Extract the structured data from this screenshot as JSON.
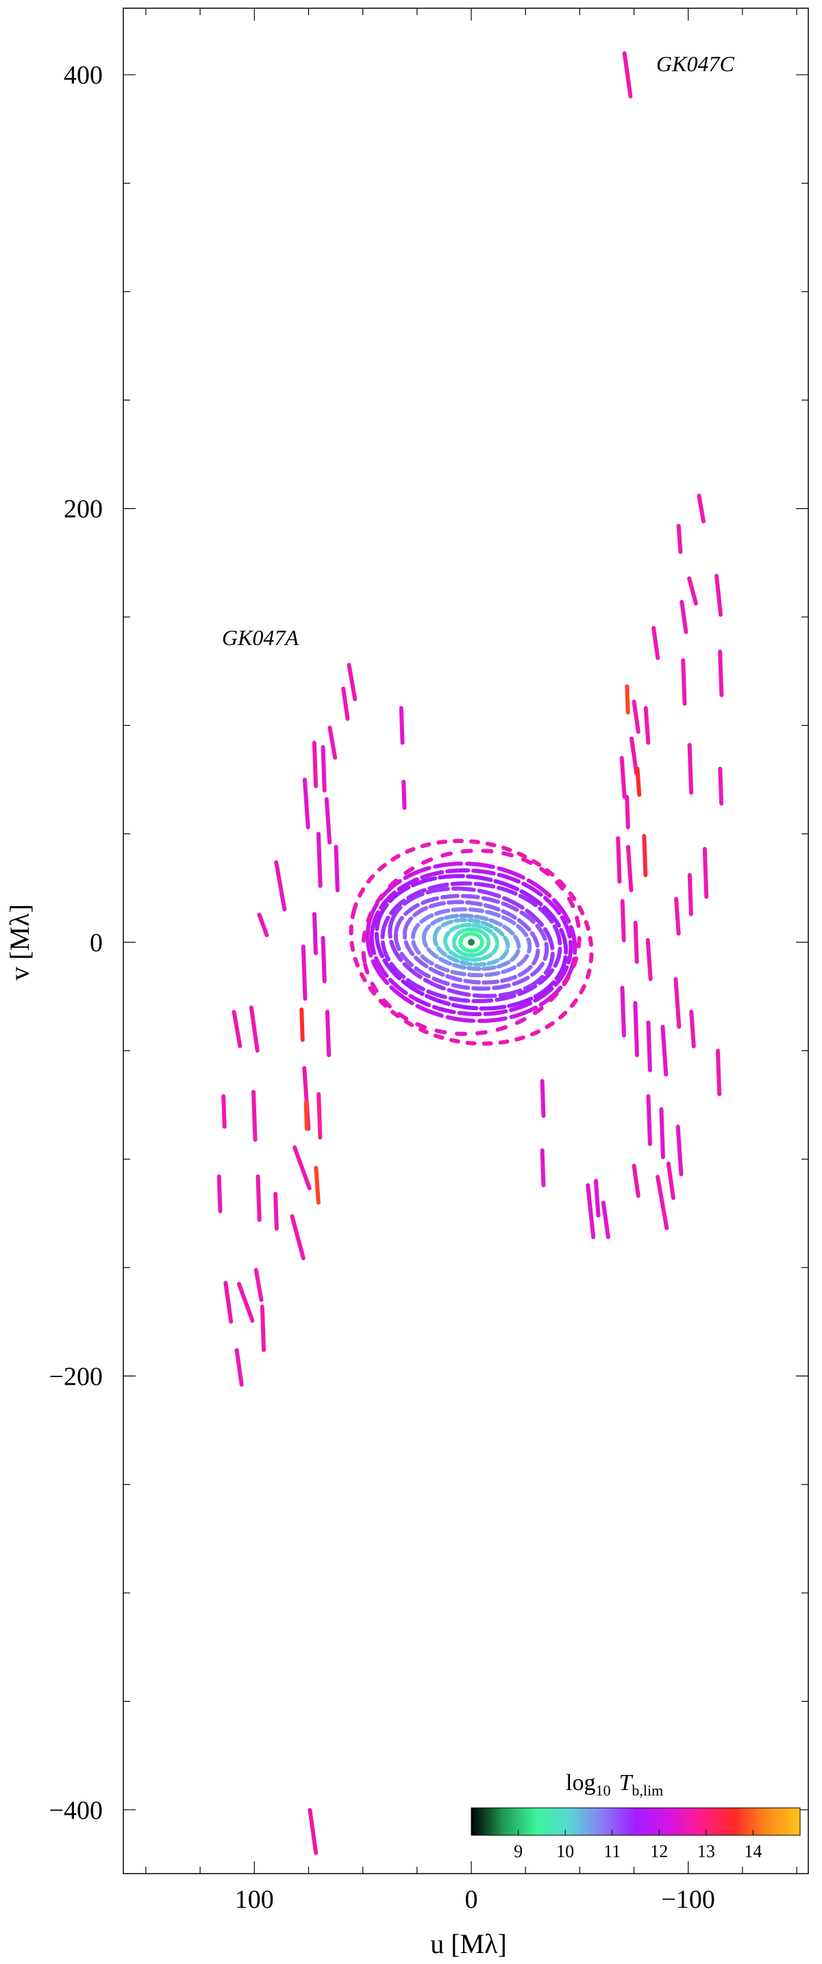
{
  "chart_data": {
    "type": "scatter",
    "xlabel": "u [Mλ]",
    "ylabel": "v [Mλ]",
    "xlim": [
      155,
      -155
    ],
    "ylim": [
      -430,
      430
    ],
    "x_ticks": [
      100,
      0,
      -100
    ],
    "x_tick_labels": [
      "100",
      "0",
      "−100"
    ],
    "y_ticks": [
      400,
      200,
      0,
      -200,
      -400
    ],
    "y_tick_labels": [
      "400",
      "200",
      "0",
      "−200",
      "−400"
    ],
    "grid": false,
    "annotations": [
      {
        "text": "GK047A",
        "u": 93,
        "v": 140
      },
      {
        "text": "GK047C",
        "u": -86,
        "v": 400
      }
    ],
    "colorbar": {
      "title": "log₁₀ Tᵦ,lim",
      "title_main": "log",
      "title_sub": "10",
      "title_var": "T",
      "title_var_sub": "b,lim",
      "range": [
        8,
        15
      ],
      "ticks": [
        9,
        10,
        11,
        12,
        13,
        14
      ],
      "tick_labels": [
        "9",
        "10",
        "11",
        "12",
        "13",
        "14"
      ],
      "colormap": [
        "#000000",
        "#1f9e56",
        "#3df59a",
        "#58d6d6",
        "#8a7cf5",
        "#a21cff",
        "#d413e6",
        "#ff1c8a",
        "#ff2a2a",
        "#ff8a1a",
        "#ffc21a"
      ]
    },
    "ellipses": [
      {
        "a": 48,
        "b": 36,
        "tilt": 8,
        "t": 12.0,
        "dash": 38,
        "gap": 9
      },
      {
        "a": 46,
        "b": 33,
        "tilt": 6,
        "t": 11.8,
        "dash": 30,
        "gap": 8
      },
      {
        "a": 44,
        "b": 30,
        "tilt": 10,
        "t": 11.5,
        "dash": 34,
        "gap": 7
      },
      {
        "a": 41,
        "b": 27,
        "tilt": 5,
        "t": 11.4,
        "dash": 26,
        "gap": 8
      },
      {
        "a": 38,
        "b": 24,
        "tilt": 12,
        "t": 11.3,
        "dash": 30,
        "gap": 8
      },
      {
        "a": 35,
        "b": 21,
        "tilt": 8,
        "t": 11.1,
        "dash": 22,
        "gap": 8
      },
      {
        "a": 31,
        "b": 18,
        "tilt": 10,
        "t": 11.0,
        "dash": 20,
        "gap": 7
      },
      {
        "a": 27,
        "b": 15,
        "tilt": 6,
        "t": 10.8,
        "dash": 18,
        "gap": 7
      },
      {
        "a": 22,
        "b": 12,
        "tilt": 8,
        "t": 10.6,
        "dash": 16,
        "gap": 6
      },
      {
        "a": 17,
        "b": 10,
        "tilt": 10,
        "t": 10.3,
        "dash": 14,
        "gap": 6
      },
      {
        "a": 12,
        "b": 8,
        "tilt": 5,
        "t": 10.0,
        "dash": 12,
        "gap": 5
      },
      {
        "a": 8,
        "b": 6,
        "tilt": 0,
        "t": 9.8,
        "dash": 10,
        "gap": 4
      },
      {
        "a": 5,
        "b": 4,
        "tilt": 0,
        "t": 9.4,
        "dash": 8,
        "gap": 3
      },
      {
        "a": 56,
        "b": 46,
        "tilt": 15,
        "t": 12.6,
        "dash": 10,
        "gap": 14
      },
      {
        "a": 50,
        "b": 42,
        "tilt": -10,
        "t": 12.5,
        "dash": 12,
        "gap": 18
      }
    ],
    "tracks": [
      {
        "u": 55,
        "v": 120,
        "len": 16,
        "ang": 80,
        "t": 12.6
      },
      {
        "u": 58,
        "v": 110,
        "len": 14,
        "ang": 82,
        "t": 12.6
      },
      {
        "u": 64,
        "v": 92,
        "len": 14,
        "ang": 80,
        "t": 12.6
      },
      {
        "u": 72,
        "v": 82,
        "len": 20,
        "ang": 88,
        "t": 12.6
      },
      {
        "u": 68,
        "v": 80,
        "len": 20,
        "ang": 88,
        "t": 12.4
      },
      {
        "u": 76,
        "v": 64,
        "len": 22,
        "ang": 86,
        "t": 12.4
      },
      {
        "u": 66,
        "v": 56,
        "len": 20,
        "ang": 86,
        "t": 12.4
      },
      {
        "u": 70,
        "v": 38,
        "len": 24,
        "ang": 88,
        "t": 12.4
      },
      {
        "u": 62,
        "v": 34,
        "len": 20,
        "ang": 88,
        "t": 12.4
      },
      {
        "u": 88,
        "v": 26,
        "len": 22,
        "ang": 80,
        "t": 12.5
      },
      {
        "u": 96,
        "v": 8,
        "len": 10,
        "ang": 70,
        "t": 12.5
      },
      {
        "u": 72,
        "v": 4,
        "len": 18,
        "ang": 88,
        "t": 12.4
      },
      {
        "u": 68,
        "v": -8,
        "len": 20,
        "ang": 88,
        "t": 12.4
      },
      {
        "u": 77,
        "v": -14,
        "len": 24,
        "ang": 88,
        "t": 12.4
      },
      {
        "u": 78,
        "v": -38,
        "len": 14,
        "ang": 88,
        "t": 13.6
      },
      {
        "u": 66,
        "v": -42,
        "len": 20,
        "ang": 88,
        "t": 12.5
      },
      {
        "u": 100,
        "v": -40,
        "len": 20,
        "ang": 82,
        "t": 12.6
      },
      {
        "u": 108,
        "v": -40,
        "len": 16,
        "ang": 80,
        "t": 12.6
      },
      {
        "u": 76,
        "v": -72,
        "len": 28,
        "ang": 86,
        "t": 12.6
      },
      {
        "u": 70,
        "v": -80,
        "len": 20,
        "ang": 88,
        "t": 12.8
      },
      {
        "u": 76,
        "v": -80,
        "len": 12,
        "ang": 88,
        "t": 13.8
      },
      {
        "u": 100,
        "v": -80,
        "len": 22,
        "ang": 88,
        "t": 12.6
      },
      {
        "u": 114,
        "v": -78,
        "len": 14,
        "ang": 88,
        "t": 12.6
      },
      {
        "u": 78,
        "v": -104,
        "len": 20,
        "ang": 70,
        "t": 12.6
      },
      {
        "u": 71,
        "v": -112,
        "len": 16,
        "ang": 86,
        "t": 13.8
      },
      {
        "u": 98,
        "v": -118,
        "len": 20,
        "ang": 88,
        "t": 12.6
      },
      {
        "u": 90,
        "v": -124,
        "len": 16,
        "ang": 88,
        "t": 12.6
      },
      {
        "u": 116,
        "v": -116,
        "len": 16,
        "ang": 88,
        "t": 12.6
      },
      {
        "u": 80,
        "v": -136,
        "len": 20,
        "ang": 75,
        "t": 12.6
      },
      {
        "u": 98,
        "v": -158,
        "len": 14,
        "ang": 80,
        "t": 12.6
      },
      {
        "u": 112,
        "v": -166,
        "len": 18,
        "ang": 82,
        "t": 12.6
      },
      {
        "u": 104,
        "v": -166,
        "len": 18,
        "ang": 70,
        "t": 12.6
      },
      {
        "u": 96,
        "v": -178,
        "len": 20,
        "ang": 88,
        "t": 12.6
      },
      {
        "u": 107,
        "v": -196,
        "len": 16,
        "ang": 82,
        "t": 12.6
      },
      {
        "u": 73,
        "v": -410,
        "len": 20,
        "ang": 82,
        "t": 12.6
      },
      {
        "u": 32,
        "v": 100,
        "len": 16,
        "ang": 88,
        "t": 12.4
      },
      {
        "u": 31,
        "v": 68,
        "len": 12,
        "ang": 88,
        "t": 12.4
      },
      {
        "u": -33,
        "v": -72,
        "len": 16,
        "ang": 88,
        "t": 12.4
      },
      {
        "u": -33,
        "v": -104,
        "len": 16,
        "ang": 88,
        "t": 12.4
      },
      {
        "u": -72,
        "v": 400,
        "len": 20,
        "ang": 82,
        "t": 12.6
      },
      {
        "u": -106,
        "v": 200,
        "len": 12,
        "ang": 80,
        "t": 12.6
      },
      {
        "u": -96,
        "v": 186,
        "len": 12,
        "ang": 86,
        "t": 12.6
      },
      {
        "u": -114,
        "v": 160,
        "len": 18,
        "ang": 84,
        "t": 12.6
      },
      {
        "u": -102,
        "v": 162,
        "len": 12,
        "ang": 75,
        "t": 12.6
      },
      {
        "u": -98,
        "v": 150,
        "len": 14,
        "ang": 82,
        "t": 12.6
      },
      {
        "u": -85,
        "v": 138,
        "len": 14,
        "ang": 82,
        "t": 12.6
      },
      {
        "u": -115,
        "v": 124,
        "len": 20,
        "ang": 88,
        "t": 12.6
      },
      {
        "u": -98,
        "v": 120,
        "len": 20,
        "ang": 88,
        "t": 12.6
      },
      {
        "u": -72,
        "v": 112,
        "len": 12,
        "ang": 88,
        "t": 13.8
      },
      {
        "u": -76,
        "v": 104,
        "len": 14,
        "ang": 82,
        "t": 12.6
      },
      {
        "u": -81,
        "v": 100,
        "len": 16,
        "ang": 86,
        "t": 12.6
      },
      {
        "u": -75,
        "v": 86,
        "len": 16,
        "ang": 82,
        "t": 12.6
      },
      {
        "u": -70,
        "v": 76,
        "len": 18,
        "ang": 86,
        "t": 12.6
      },
      {
        "u": -77,
        "v": 74,
        "len": 12,
        "ang": 86,
        "t": 13.6
      },
      {
        "u": -101,
        "v": 80,
        "len": 22,
        "ang": 88,
        "t": 12.6
      },
      {
        "u": -115,
        "v": 72,
        "len": 16,
        "ang": 88,
        "t": 12.6
      },
      {
        "u": -72,
        "v": 60,
        "len": 14,
        "ang": 88,
        "t": 12.6
      },
      {
        "u": -80,
        "v": 40,
        "len": 18,
        "ang": 88,
        "t": 13.4
      },
      {
        "u": -73,
        "v": 34,
        "len": 20,
        "ang": 86,
        "t": 12.6
      },
      {
        "u": -68,
        "v": 38,
        "len": 20,
        "ang": 88,
        "t": 12.6
      },
      {
        "u": -108,
        "v": 32,
        "len": 22,
        "ang": 88,
        "t": 12.6
      },
      {
        "u": -101,
        "v": 22,
        "len": 18,
        "ang": 88,
        "t": 12.6
      },
      {
        "u": -95,
        "v": 12,
        "len": 16,
        "ang": 86,
        "t": 12.6
      },
      {
        "u": -70,
        "v": 10,
        "len": 18,
        "ang": 88,
        "t": 12.6
      },
      {
        "u": -76,
        "v": 0,
        "len": 18,
        "ang": 88,
        "t": 12.6
      },
      {
        "u": -70,
        "v": -32,
        "len": 22,
        "ang": 88,
        "t": 12.4
      },
      {
        "u": -76,
        "v": -40,
        "len": 24,
        "ang": 88,
        "t": 12.4
      },
      {
        "u": -82,
        "v": -48,
        "len": 22,
        "ang": 88,
        "t": 12.4
      },
      {
        "u": -89,
        "v": -50,
        "len": 22,
        "ang": 86,
        "t": 12.4
      },
      {
        "u": -95,
        "v": -28,
        "len": 22,
        "ang": 86,
        "t": 12.6
      },
      {
        "u": -102,
        "v": -40,
        "len": 16,
        "ang": 86,
        "t": 12.6
      },
      {
        "u": -82,
        "v": -82,
        "len": 22,
        "ang": 88,
        "t": 12.4
      },
      {
        "u": -88,
        "v": -88,
        "len": 22,
        "ang": 88,
        "t": 12.4
      },
      {
        "u": -96,
        "v": -96,
        "len": 22,
        "ang": 86,
        "t": 12.4
      },
      {
        "u": -76,
        "v": -110,
        "len": 14,
        "ang": 82,
        "t": 12.6
      },
      {
        "u": -88,
        "v": -120,
        "len": 24,
        "ang": 80,
        "t": 12.6
      },
      {
        "u": -92,
        "v": -110,
        "len": 16,
        "ang": 82,
        "t": 12.6
      },
      {
        "u": -55,
        "v": -124,
        "len": 24,
        "ang": 84,
        "t": 12.4
      },
      {
        "u": -62,
        "v": -128,
        "len": 16,
        "ang": 82,
        "t": 12.4
      },
      {
        "u": -58,
        "v": -118,
        "len": 16,
        "ang": 86,
        "t": 12.4
      },
      {
        "u": -114,
        "v": -60,
        "len": 20,
        "ang": 88,
        "t": 12.6
      },
      {
        "u": -82,
        "v": -8,
        "len": 18,
        "ang": 86,
        "t": 12.6
      }
    ]
  }
}
